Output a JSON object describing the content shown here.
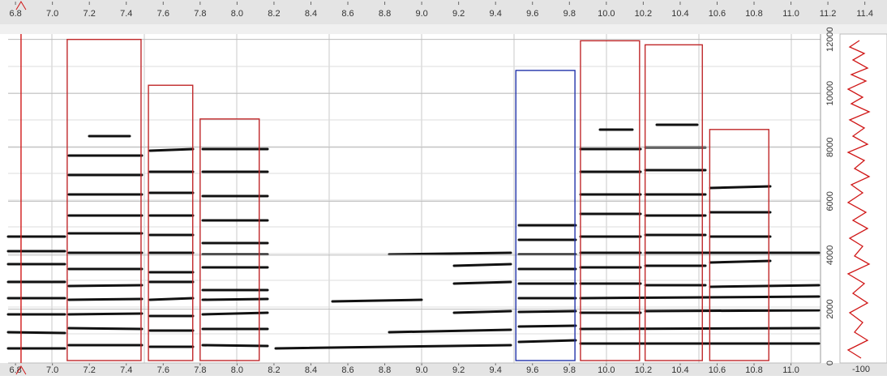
{
  "chart_data": {
    "type": "spectrogram",
    "xlim": [
      6.76,
      11.16
    ],
    "ylim": [
      0,
      12200
    ],
    "top_xticks": [
      6.8,
      {
        "value": 7,
        "label": "7.0"
      },
      7.2,
      7.4,
      7.6,
      7.8,
      {
        "value": 8,
        "label": "8.0"
      },
      8.2,
      8.4,
      8.6,
      8.8,
      {
        "value": 9,
        "label": "9.0"
      },
      9.2,
      9.4,
      9.6,
      9.8,
      {
        "value": 10,
        "label": "10.0"
      },
      10.2,
      10.4,
      10.6,
      10.8,
      {
        "value": 11,
        "label": "11.0"
      },
      11.2,
      11.4
    ],
    "xticks": [
      6.8,
      {
        "value": 7,
        "label": "7.0"
      },
      7.2,
      7.4,
      7.6,
      7.8,
      {
        "value": 8,
        "label": "8.0"
      },
      8.2,
      8.4,
      8.6,
      8.8,
      {
        "value": 9,
        "label": "9.0"
      },
      9.2,
      9.4,
      9.6,
      9.8,
      {
        "value": 10,
        "label": "10.0"
      },
      10.2,
      10.4,
      10.6,
      10.8,
      {
        "value": 11,
        "label": "11.0"
      }
    ],
    "yticks": [
      0,
      2000,
      4000,
      6000,
      8000,
      10000,
      12000
    ],
    "cursor": 6.83,
    "regions": [
      {
        "start": 7.08,
        "end": 7.48,
        "top": 12000,
        "color": "#c0282a"
      },
      {
        "start": 7.52,
        "end": 7.76,
        "top": 10300,
        "color": "#c0282a"
      },
      {
        "start": 7.8,
        "end": 8.12,
        "top": 9050,
        "color": "#c0282a"
      },
      {
        "start": 9.51,
        "end": 9.83,
        "top": 10850,
        "color": "#2233aa"
      },
      {
        "start": 9.86,
        "end": 10.18,
        "top": 11950,
        "color": "#c0282a"
      },
      {
        "start": 10.21,
        "end": 10.52,
        "top": 11800,
        "color": "#c0282a"
      },
      {
        "start": 10.56,
        "end": 10.88,
        "top": 8660,
        "color": "#c0282a"
      }
    ],
    "side_panel_label": "-100"
  }
}
